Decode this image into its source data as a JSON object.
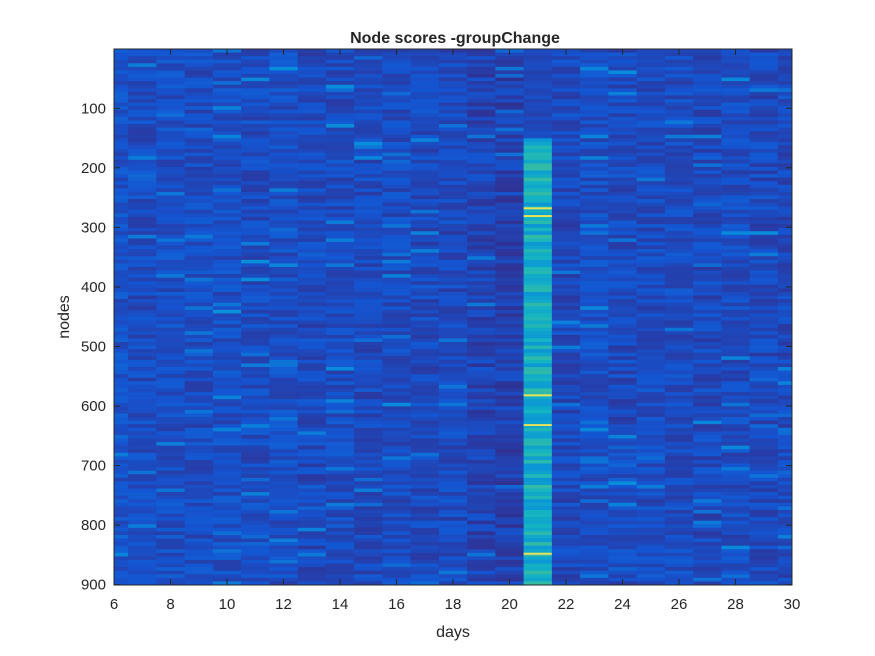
{
  "chart_data": {
    "type": "heatmap",
    "title": "Node scores -groupChange",
    "xlabel": "days",
    "ylabel": "nodes",
    "xlim": [
      6,
      30
    ],
    "ylim": [
      900,
      1
    ],
    "y_direction": "reversed",
    "x_ticks": [
      "6",
      "8",
      "10",
      "12",
      "14",
      "16",
      "18",
      "20",
      "22",
      "24",
      "26",
      "28",
      "30"
    ],
    "y_ticks": [
      "100",
      "200",
      "300",
      "400",
      "500",
      "600",
      "700",
      "800",
      "900"
    ],
    "days": [
      6,
      7,
      8,
      9,
      10,
      11,
      12,
      13,
      14,
      15,
      16,
      17,
      18,
      19,
      20,
      21,
      22,
      23,
      24,
      25,
      26,
      27,
      28,
      29,
      30
    ],
    "node_count": 900,
    "grid": false,
    "colormap": "parula",
    "colors": {
      "background": "#2a2f8e",
      "low": "#2d3189",
      "mid": "#2f5ed8",
      "high": "#29b4d6",
      "peak": "#e8e45a"
    },
    "day_mean_intensity": [
      0.14,
      0.12,
      0.13,
      0.12,
      0.13,
      0.12,
      0.13,
      0.11,
      0.12,
      0.11,
      0.12,
      0.11,
      0.11,
      0.09,
      0.08,
      0.45,
      0.11,
      0.13,
      0.11,
      0.12,
      0.12,
      0.11,
      0.12,
      0.11,
      0.11
    ],
    "anomaly": {
      "day": 21,
      "node_range": [
        150,
        900
      ],
      "peak_nodes": [
        268,
        281,
        582,
        632,
        848
      ]
    }
  }
}
